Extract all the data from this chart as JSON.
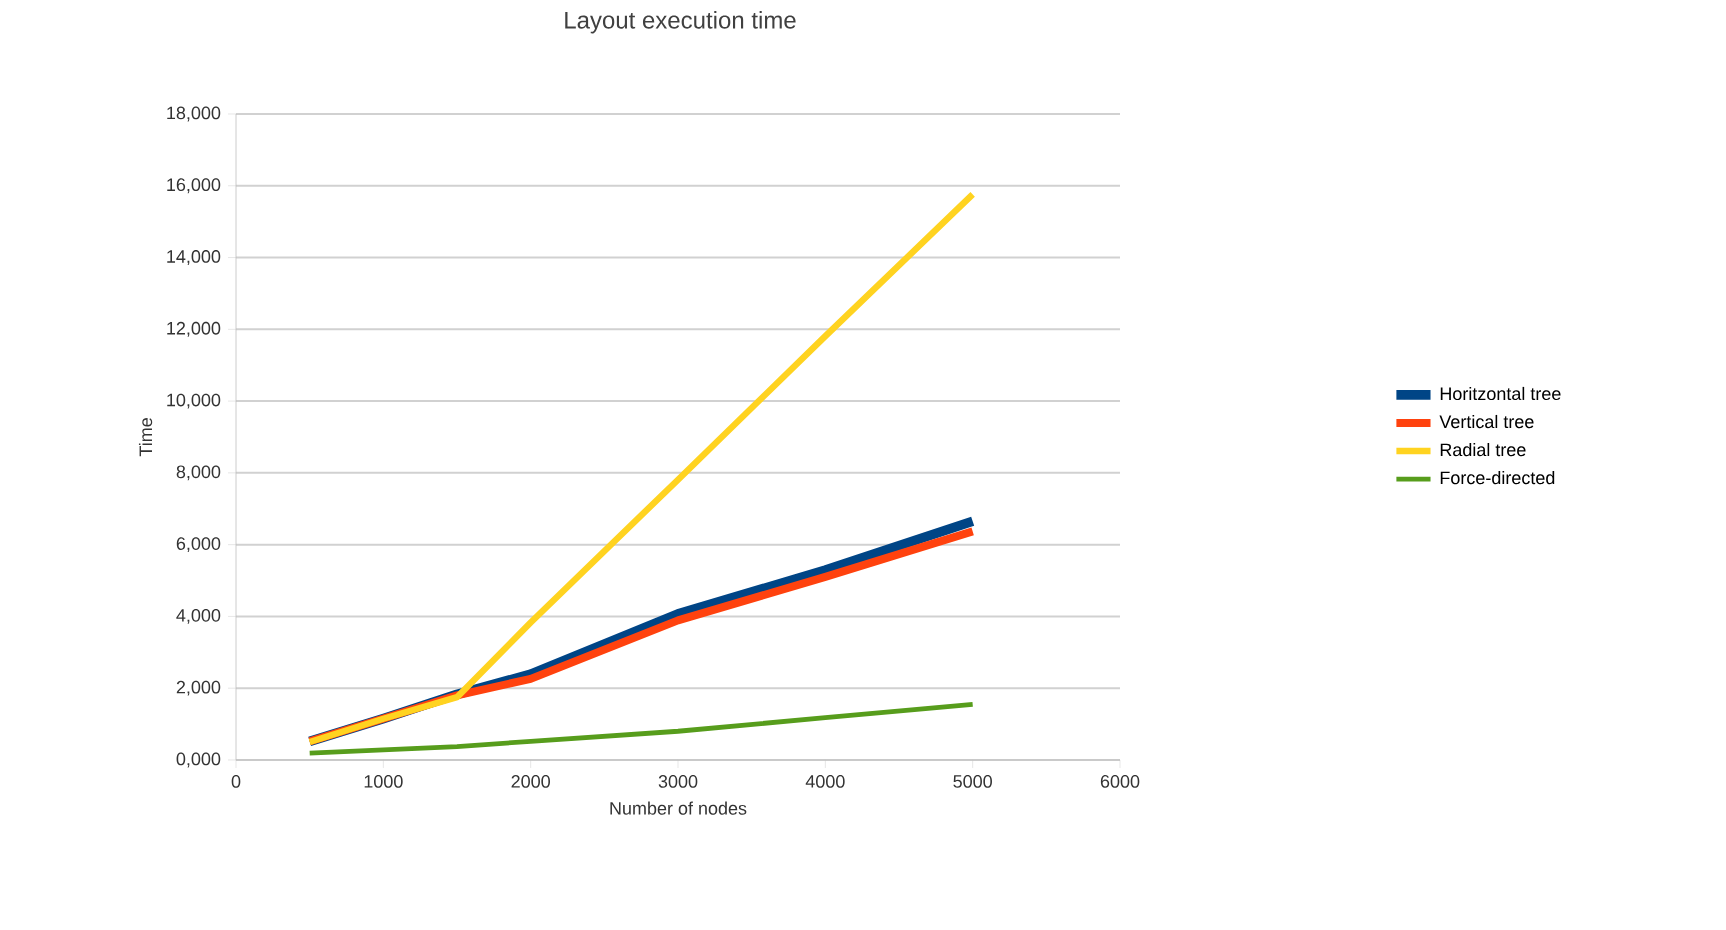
{
  "chart_data": {
    "type": "line",
    "title": "Layout execution time",
    "xlabel": "Number of nodes",
    "ylabel": "Time",
    "x": [
      500,
      1000,
      1500,
      2000,
      3000,
      4000,
      5000
    ],
    "series": [
      {
        "name": "Horitzontal tree",
        "color": "#004586",
        "values": [
          520,
          1150,
          1830,
          2390,
          4070,
          5290,
          6650
        ]
      },
      {
        "name": "Vertical tree",
        "color": "#ff420e",
        "values": [
          520,
          1150,
          1800,
          2260,
          3890,
          5100,
          6370
        ]
      },
      {
        "name": "Radial tree",
        "color": "#ffd320",
        "values": [
          500,
          1150,
          1750,
          3830,
          7810,
          11810,
          15760
        ]
      },
      {
        "name": "Force-directed",
        "color": "#579d1c",
        "values": [
          190,
          280,
          370,
          520,
          800,
          1180,
          1550
        ]
      }
    ],
    "xlim": [
      0,
      6000
    ],
    "xticks": [
      0,
      1000,
      2000,
      3000,
      4000,
      5000,
      6000
    ],
    "ylim": [
      0,
      18000
    ],
    "yticks": [
      {
        "value": 0,
        "label": "0,000"
      },
      {
        "value": 2000,
        "label": "2,000"
      },
      {
        "value": 4000,
        "label": "4,000"
      },
      {
        "value": 6000,
        "label": "6,000"
      },
      {
        "value": 8000,
        "label": "8,000"
      },
      {
        "value": 10000,
        "label": "10,000"
      },
      {
        "value": 12000,
        "label": "12,000"
      },
      {
        "value": 14000,
        "label": "14,000"
      },
      {
        "value": 16000,
        "label": "16,000"
      },
      {
        "value": 18000,
        "label": "18,000"
      }
    ],
    "grid": "y",
    "legend": "right",
    "marker": "none",
    "line_style": "solid"
  }
}
